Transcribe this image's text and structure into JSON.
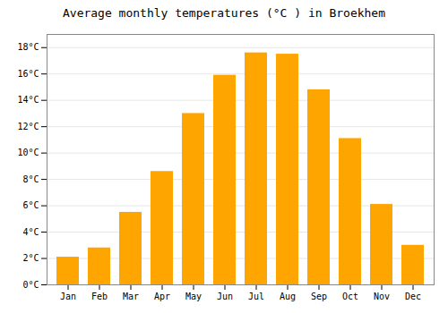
{
  "chart_data": {
    "type": "bar",
    "title": "Average monthly temperatures (°C ) in Broekhem",
    "categories": [
      "Jan",
      "Feb",
      "Mar",
      "Apr",
      "May",
      "Jun",
      "Jul",
      "Aug",
      "Sep",
      "Oct",
      "Nov",
      "Dec"
    ],
    "values": [
      2.1,
      2.8,
      5.5,
      8.6,
      13.0,
      15.9,
      17.6,
      17.5,
      14.8,
      11.1,
      6.1,
      3.0
    ],
    "color": "#FFA500",
    "ylim": [
      0,
      19
    ],
    "yticks": [
      {
        "value": 0,
        "label": "0°C"
      },
      {
        "value": 2,
        "label": "2°C"
      },
      {
        "value": 4,
        "label": "4°C"
      },
      {
        "value": 6,
        "label": "6°C"
      },
      {
        "value": 8,
        "label": "8°C"
      },
      {
        "value": 10,
        "label": "10°C"
      },
      {
        "value": 12,
        "label": "12°C"
      },
      {
        "value": 14,
        "label": "14°C"
      },
      {
        "value": 16,
        "label": "16°C"
      },
      {
        "value": 18,
        "label": "18°C"
      }
    ],
    "grid": true
  }
}
